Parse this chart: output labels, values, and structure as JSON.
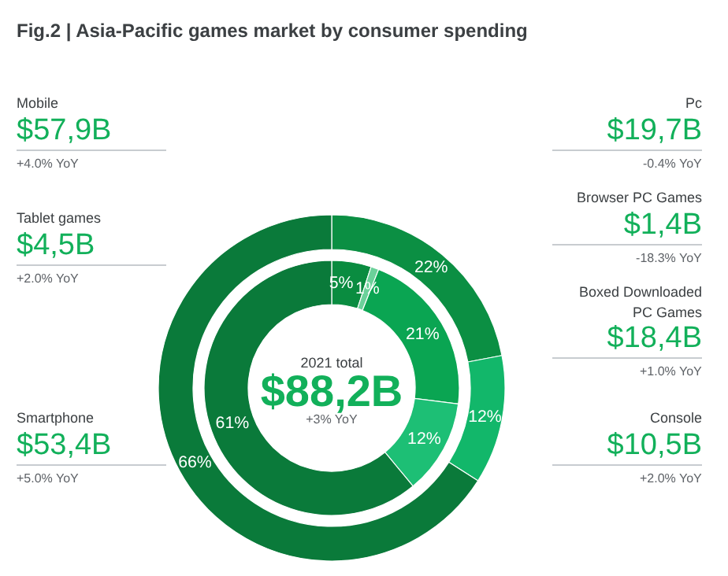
{
  "chart_data": {
    "type": "donut",
    "title": "Fig.2 | Asia-Pacific games market by consumer spending",
    "series": [
      {
        "values": [
          22,
          12,
          66
        ],
        "colors": [
          "#0b8f43",
          "#12b76a",
          "#0a7a3a"
        ],
        "value_labels": [
          "22%",
          "12%",
          "66%"
        ]
      },
      {
        "values": [
          5,
          1,
          21,
          12,
          61
        ],
        "colors": [
          "#0a8c40",
          "#6bd19a",
          "#0aa552",
          "#1dbf75",
          "#0a7a3a"
        ],
        "value_labels": [
          "5%",
          "1%",
          "21%",
          "12%",
          "61%"
        ]
      }
    ],
    "annotations": [
      "2021 total",
      "$88,2B",
      "+3% YoY",
      "Mobile",
      "$57,9B",
      "+4.0% YoY",
      "Tablet games",
      "$4,5B",
      "+2.0% YoY",
      "Smartphone",
      "$53,4B",
      "+5.0% YoY",
      "Pc",
      "$19,7B",
      "-0.4% YoY",
      "Browser PC Games",
      "$1,4B",
      "-18.3% YoY",
      "Boxed Downloaded\nPC Games",
      "$18,4B",
      "+1.0% YoY",
      "Console",
      "$10,5B",
      "+2.0% YoY"
    ]
  }
}
